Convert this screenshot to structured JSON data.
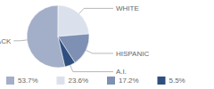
{
  "chart_data": {
    "type": "pie",
    "categories": [
      "BLACK",
      "WHITE",
      "HISPANIC",
      "A.I."
    ],
    "values": [
      53.7,
      23.6,
      17.2,
      5.5
    ],
    "value_labels": [
      "53.7%",
      "23.6%",
      "17.2%",
      "5.5%"
    ],
    "colors": [
      "#a3afc8",
      "#dbe1ec",
      "#7e90b3",
      "#2f4f7f"
    ],
    "legend": "bottom"
  }
}
